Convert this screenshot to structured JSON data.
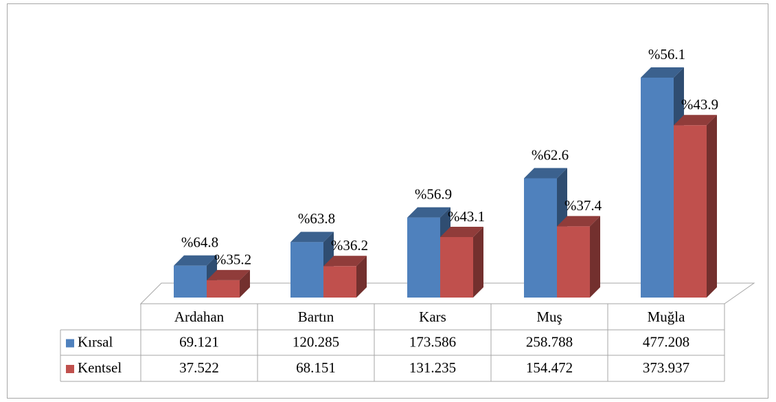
{
  "chart_data": {
    "type": "bar3d",
    "categories": [
      "Ardahan",
      "Bartın",
      "Kars",
      "Muş",
      "Muğla"
    ],
    "series": [
      {
        "name": "Kırsal",
        "color": "#4f81bd",
        "values": [
          69121,
          120285,
          173586,
          258788,
          477208
        ],
        "value_labels": [
          "69.121",
          "120.285",
          "173.586",
          "258.788",
          "477.208"
        ],
        "percent_labels": [
          "%64.8",
          "%63.8",
          "%56.9",
          "%62.6",
          "%56.1"
        ]
      },
      {
        "name": "Kentsel",
        "color": "#c0504d",
        "values": [
          37522,
          68151,
          131235,
          154472,
          373937
        ],
        "value_labels": [
          "37.522",
          "68.151",
          "131.235",
          "154.472",
          "373.937"
        ],
        "percent_labels": [
          "%35.2",
          "%36.2",
          "%43.1",
          "%37.4",
          "%43.9"
        ]
      }
    ]
  }
}
